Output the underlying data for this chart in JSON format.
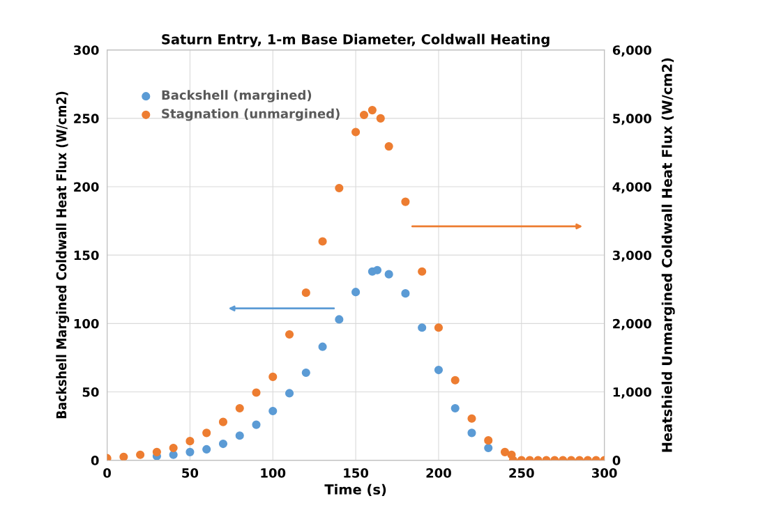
{
  "chart_data": {
    "type": "scatter",
    "title": "Saturn Entry, 1-m Base Diameter, Coldwall Heating",
    "xlabel": "Time (s)",
    "ylabel": "Backshell Margined Coldwall Heat Flux (W/cm2)",
    "y2label": "Heatshield Unmargined Coldwall Heat Flux (W/cm2)",
    "xlim": [
      0,
      300
    ],
    "xticks": [
      0,
      50,
      100,
      150,
      200,
      250,
      300
    ],
    "ylim": [
      0,
      300
    ],
    "yticks": [
      0,
      50,
      100,
      150,
      200,
      250,
      300
    ],
    "y2lim": [
      0,
      6000
    ],
    "y2ticks": [
      {
        "value": 0,
        "label": "0"
      },
      {
        "value": 1000,
        "label": "1,000"
      },
      {
        "value": 2000,
        "label": "2,000"
      },
      {
        "value": 3000,
        "label": "3,000"
      },
      {
        "value": 4000,
        "label": "4,000"
      },
      {
        "value": 5000,
        "label": "5,000"
      },
      {
        "value": 6000,
        "label": "6,000"
      }
    ],
    "grid": true,
    "legend": "top left",
    "marker": "circle",
    "series": [
      {
        "name": "Backshell (margined)",
        "color": "#5b9bd5",
        "x": [
          30,
          40,
          50,
          60,
          70,
          80,
          90,
          100,
          110,
          120,
          130,
          140,
          150,
          160,
          163,
          170,
          180,
          190,
          200,
          210,
          220,
          230
        ],
        "values": [
          3,
          4,
          6,
          8,
          12,
          18,
          26,
          36,
          49,
          64,
          83,
          103,
          123,
          138,
          139,
          136,
          122,
          97,
          66,
          38,
          20,
          9
        ]
      },
      {
        "name": "Stagnation (unmargined)",
        "color": "#ed7d31",
        "axis": "y2",
        "x": [
          0,
          10,
          20,
          30,
          40,
          50,
          60,
          70,
          80,
          90,
          100,
          110,
          120,
          130,
          140,
          150,
          155,
          160,
          165,
          170,
          180,
          190,
          200,
          210,
          220,
          230,
          240,
          244,
          245,
          250,
          255,
          260,
          265,
          270,
          275,
          280,
          285,
          290,
          295,
          300
        ],
        "values": [
          30,
          50,
          80,
          120,
          180,
          280,
          400,
          560,
          760,
          990,
          1220,
          1840,
          2450,
          3200,
          3980,
          4800,
          5050,
          5120,
          5000,
          4590,
          3780,
          2760,
          1940,
          1170,
          610,
          290,
          120,
          80,
          0,
          0,
          0,
          0,
          0,
          0,
          0,
          0,
          0,
          0,
          0,
          0
        ]
      }
    ]
  }
}
